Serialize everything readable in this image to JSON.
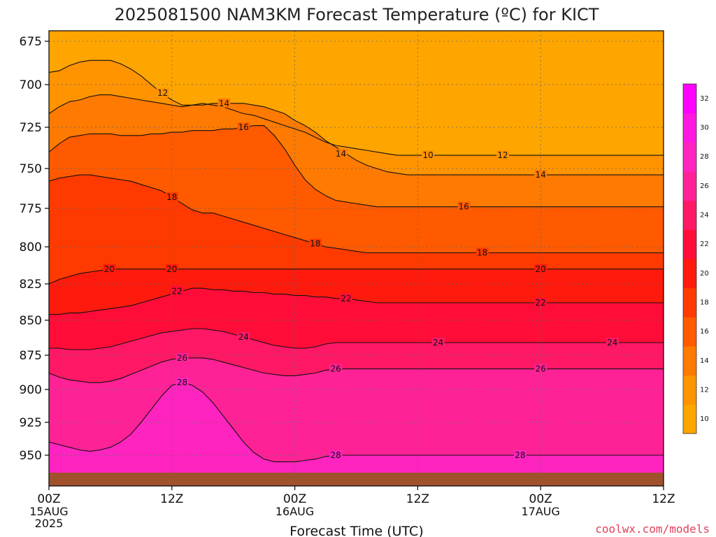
{
  "chart_data": {
    "type": "heatmap",
    "title": "2025081500 NAM3KM Forecast Temperature (ºC) for KICT",
    "xlabel": "Forecast Time (UTC)",
    "ylabel": "",
    "y_axis": {
      "direction": "pressure (increasing downward)",
      "range": [
        670,
        965
      ],
      "ticks": [
        675,
        700,
        725,
        750,
        775,
        800,
        825,
        850,
        875,
        900,
        925,
        950
      ]
    },
    "x_axis": {
      "range_hours": [
        0,
        60
      ],
      "ticks": [
        {
          "hour": 0,
          "label": "00Z",
          "date": "15AUG",
          "year": "2025"
        },
        {
          "hour": 12,
          "label": "12Z",
          "date": "",
          "year": ""
        },
        {
          "hour": 24,
          "label": "00Z",
          "date": "16AUG",
          "year": ""
        },
        {
          "hour": 36,
          "label": "12Z",
          "date": "",
          "year": ""
        },
        {
          "hour": 48,
          "label": "00Z",
          "date": "17AUG",
          "year": ""
        },
        {
          "hour": 60,
          "label": "12Z",
          "date": "",
          "year": ""
        }
      ]
    },
    "grid": true,
    "colorbar": {
      "placement": "right",
      "levels": [
        10,
        12,
        14,
        16,
        18,
        20,
        22,
        24,
        26,
        28,
        30,
        32
      ],
      "colors": [
        "#ffa500",
        "#ff9300",
        "#ff7a00",
        "#ff5a00",
        "#ff3a00",
        "#ff1a0e",
        "#ff0d38",
        "#ff1866",
        "#ff2296",
        "#ff24c0",
        "#ff18e0",
        "#ff00ff"
      ]
    },
    "contour_interval": 2,
    "isotherms": [
      {
        "value": 12,
        "pressure": [
          693,
          692,
          689,
          687,
          686,
          686,
          686,
          688,
          691,
          695,
          700,
          705,
          709,
          712,
          712,
          711,
          712,
          713,
          715,
          717,
          718,
          720,
          722,
          724,
          726,
          728,
          731,
          734,
          736,
          737,
          738,
          739,
          740,
          741,
          742,
          742,
          742,
          742,
          742,
          742,
          742,
          742,
          742,
          742,
          742,
          742,
          742,
          742,
          742,
          742,
          742,
          742,
          742,
          742,
          742,
          742,
          742,
          742,
          742,
          742,
          742
        ]
      },
      {
        "value": 14,
        "pressure": [
          717,
          713,
          710,
          709,
          707,
          706,
          706,
          707,
          708,
          709,
          710,
          711,
          712,
          713,
          712,
          712,
          711,
          711,
          711,
          711,
          712,
          713,
          715,
          717,
          721,
          724,
          728,
          733,
          737,
          741,
          745,
          748,
          750,
          752,
          753,
          754,
          754,
          754,
          754,
          754,
          754,
          754,
          754,
          754,
          754,
          754,
          754,
          754,
          754,
          754,
          754,
          754,
          754,
          754,
          754,
          754,
          754,
          754,
          754,
          754,
          754
        ]
      },
      {
        "value": 16,
        "pressure": [
          740,
          735,
          731,
          730,
          729,
          729,
          729,
          730,
          730,
          730,
          729,
          729,
          728,
          728,
          727,
          727,
          727,
          726,
          726,
          725,
          724,
          724,
          730,
          738,
          748,
          757,
          763,
          767,
          770,
          771,
          772,
          773,
          774,
          774,
          774,
          774,
          774,
          774,
          774,
          774,
          774,
          774,
          774,
          774,
          774,
          774,
          774,
          774,
          774,
          774,
          774,
          774,
          774,
          774,
          774,
          774,
          774,
          774,
          774,
          774,
          774
        ]
      },
      {
        "value": 18,
        "pressure": [
          758,
          756,
          755,
          754,
          754,
          755,
          756,
          757,
          758,
          760,
          762,
          764,
          768,
          772,
          776,
          778,
          778,
          780,
          782,
          784,
          786,
          788,
          790,
          792,
          794,
          796,
          798,
          800,
          801,
          802,
          803,
          804,
          804,
          804,
          804,
          804,
          804,
          804,
          804,
          804,
          804,
          804,
          804,
          804,
          804,
          804,
          804,
          804,
          804,
          804,
          804,
          804,
          804,
          804,
          804,
          804,
          804,
          804,
          804,
          804,
          804
        ]
      },
      {
        "value": 20,
        "pressure": [
          825,
          822,
          820,
          818,
          817,
          816,
          815,
          815,
          815,
          815,
          815,
          815,
          815,
          815,
          815,
          815,
          815,
          815,
          815,
          815,
          815,
          815,
          815,
          815,
          815,
          815,
          815,
          815,
          815,
          815,
          815,
          815,
          815,
          815,
          815,
          815,
          815,
          815,
          815,
          815,
          815,
          815,
          815,
          815,
          815,
          815,
          815,
          815,
          815,
          815,
          815,
          815,
          815,
          815,
          815,
          815,
          815,
          815,
          815,
          815,
          815
        ]
      },
      {
        "value": 22,
        "pressure": [
          846,
          846,
          845,
          845,
          844,
          843,
          842,
          841,
          840,
          838,
          836,
          834,
          832,
          830,
          828,
          828,
          829,
          829,
          830,
          830,
          831,
          831,
          832,
          832,
          833,
          833,
          834,
          834,
          835,
          835,
          836,
          837,
          838,
          838,
          838,
          838,
          838,
          838,
          838,
          838,
          838,
          838,
          838,
          838,
          838,
          838,
          838,
          838,
          838,
          838,
          838,
          838,
          838,
          838,
          838,
          838,
          838,
          838,
          838,
          838,
          838
        ]
      },
      {
        "value": 24,
        "pressure": [
          870,
          870,
          871,
          871,
          871,
          870,
          869,
          867,
          865,
          863,
          861,
          859,
          858,
          857,
          856,
          856,
          857,
          858,
          860,
          862,
          864,
          866,
          868,
          869,
          870,
          870,
          869,
          867,
          866,
          866,
          866,
          866,
          866,
          866,
          866,
          866,
          866,
          866,
          866,
          866,
          866,
          866,
          866,
          866,
          866,
          866,
          866,
          866,
          866,
          866,
          866,
          866,
          866,
          866,
          866,
          866,
          866,
          866,
          866,
          866,
          866
        ]
      },
      {
        "value": 26,
        "pressure": [
          888,
          891,
          893,
          894,
          895,
          895,
          894,
          892,
          889,
          886,
          883,
          880,
          878,
          877,
          877,
          877,
          878,
          880,
          882,
          884,
          886,
          888,
          889,
          890,
          890,
          889,
          888,
          886,
          885,
          885,
          885,
          885,
          885,
          885,
          885,
          885,
          885,
          885,
          885,
          885,
          885,
          885,
          885,
          885,
          885,
          885,
          885,
          885,
          885,
          885,
          885,
          885,
          885,
          885,
          885,
          885,
          885,
          885,
          885,
          885,
          885
        ]
      },
      {
        "value": 28,
        "pressure": [
          940,
          942,
          944,
          946,
          947,
          946,
          944,
          940,
          934,
          925,
          915,
          905,
          897,
          895,
          897,
          902,
          910,
          920,
          930,
          940,
          948,
          953,
          955,
          955,
          955,
          954,
          953,
          951,
          950,
          950,
          950,
          950,
          950,
          950,
          950,
          950,
          950,
          950,
          950,
          950,
          950,
          950,
          950,
          950,
          950,
          950,
          950,
          950,
          950,
          950,
          950,
          950,
          950,
          950,
          950,
          950,
          950,
          950,
          950,
          950,
          950
        ]
      }
    ],
    "contour_labels": [
      {
        "value": 12,
        "label": "12"
      },
      {
        "value": 10,
        "label": "10"
      },
      {
        "value": 12,
        "label": "12"
      },
      {
        "value": 14,
        "label": "14"
      },
      {
        "value": 14,
        "label": "14"
      },
      {
        "value": 14,
        "label": "14"
      },
      {
        "value": 16,
        "label": "16"
      },
      {
        "value": 16,
        "label": "16"
      },
      {
        "value": 18,
        "label": "18"
      },
      {
        "value": 18,
        "label": "18"
      },
      {
        "value": 18,
        "label": "18"
      },
      {
        "value": 20,
        "label": "20"
      },
      {
        "value": 20,
        "label": "20"
      },
      {
        "value": 20,
        "label": "20"
      },
      {
        "value": 22,
        "label": "22"
      },
      {
        "value": 22,
        "label": "22"
      },
      {
        "value": 22,
        "label": "22"
      },
      {
        "value": 24,
        "label": "24"
      },
      {
        "value": 24,
        "label": "24"
      },
      {
        "value": 24,
        "label": "24"
      },
      {
        "value": 26,
        "label": "26"
      },
      {
        "value": 26,
        "label": "26"
      },
      {
        "value": 26,
        "label": "26"
      },
      {
        "value": 28,
        "label": "28"
      },
      {
        "value": 28,
        "label": "28"
      },
      {
        "value": 28,
        "label": "28"
      }
    ]
  },
  "credit": "coolwx.com/models"
}
